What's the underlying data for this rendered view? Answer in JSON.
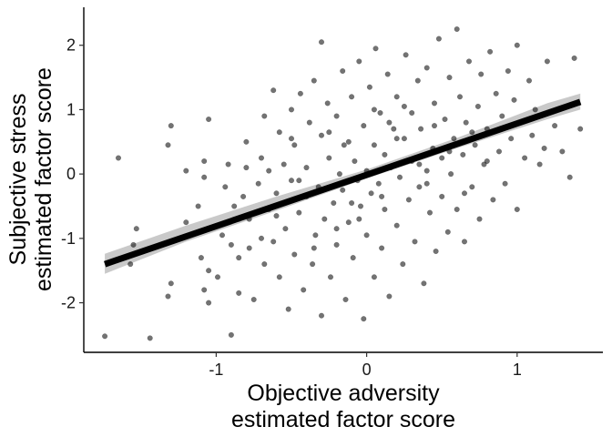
{
  "chart_data": {
    "type": "scatter",
    "title": "",
    "xlabel": [
      "Objective adversity",
      "estimated factor score"
    ],
    "ylabel": [
      "Subjective stress",
      "estimated factor score"
    ],
    "xlim": [
      -1.88,
      1.57
    ],
    "ylim": [
      -2.77,
      2.59
    ],
    "x_ticks": [
      -1,
      0,
      1
    ],
    "x_tick_labels": [
      "-1",
      "0",
      "1"
    ],
    "y_ticks": [
      -2,
      -1,
      0,
      1,
      2
    ],
    "y_tick_labels": [
      "-2",
      "-1",
      "0",
      "1",
      "2"
    ],
    "grid": false,
    "legend": "none",
    "point_color": "#000000",
    "point_opacity": 0.55,
    "fit_line": {
      "x": [
        -1.74,
        1.42
      ],
      "y": [
        -1.4,
        1.12
      ],
      "color": "#000000"
    },
    "confidence_band": {
      "x": [
        -1.74,
        -1.2,
        -0.6,
        0.0,
        0.6,
        1.2,
        1.42
      ],
      "lower": [
        -1.55,
        -1.05,
        -0.57,
        -0.07,
        0.4,
        0.85,
        1.0
      ],
      "upper": [
        -1.24,
        -0.8,
        -0.35,
        0.07,
        0.56,
        1.1,
        1.25
      ],
      "color": "#c0c0c0"
    },
    "points": [
      [
        -1.74,
        -2.52
      ],
      [
        -1.44,
        -2.55
      ],
      [
        -1.65,
        0.25
      ],
      [
        -1.53,
        -0.85
      ],
      [
        -1.55,
        -1.1
      ],
      [
        -1.57,
        -1.4
      ],
      [
        -1.32,
        0.45
      ],
      [
        -1.3,
        0.75
      ],
      [
        -1.32,
        -1.9
      ],
      [
        -1.3,
        -1.7
      ],
      [
        -1.2,
        0.05
      ],
      [
        -1.2,
        -0.75
      ],
      [
        -1.12,
        -0.5
      ],
      [
        -1.05,
        0.85
      ],
      [
        -1.05,
        -2.0
      ],
      [
        -1.1,
        -1.3
      ],
      [
        -1.08,
        -0.05
      ],
      [
        -1.08,
        0.2
      ],
      [
        -1.08,
        -1.8
      ],
      [
        -1.05,
        -1.5
      ],
      [
        -0.99,
        -1.6
      ],
      [
        -0.96,
        -0.95
      ],
      [
        -0.94,
        -0.2
      ],
      [
        -0.92,
        0.15
      ],
      [
        -0.9,
        -1.1
      ],
      [
        -0.9,
        -2.5
      ],
      [
        -0.88,
        -0.5
      ],
      [
        -0.85,
        -1.85
      ],
      [
        -0.85,
        -1.3
      ],
      [
        -0.82,
        -0.35
      ],
      [
        -0.8,
        0.5
      ],
      [
        -0.8,
        0.1
      ],
      [
        -0.78,
        -1.15
      ],
      [
        -0.78,
        -0.7
      ],
      [
        -0.75,
        -1.95
      ],
      [
        -0.72,
        -0.15
      ],
      [
        -0.7,
        0.25
      ],
      [
        -0.68,
        0.9
      ],
      [
        -0.68,
        -1.4
      ],
      [
        -0.65,
        -0.55
      ],
      [
        -0.62,
        1.3
      ],
      [
        -0.62,
        -1.05
      ],
      [
        -0.6,
        -0.3
      ],
      [
        -0.58,
        -1.6
      ],
      [
        -0.58,
        0.65
      ],
      [
        -0.55,
        0.15
      ],
      [
        -0.54,
        -0.85
      ],
      [
        -0.52,
        -2.1
      ],
      [
        -0.5,
        1.0
      ],
      [
        -0.5,
        -0.1
      ],
      [
        -0.48,
        -1.25
      ],
      [
        -0.48,
        0.45
      ],
      [
        -0.45,
        -0.6
      ],
      [
        -0.44,
        1.25
      ],
      [
        -0.42,
        -1.8
      ],
      [
        -0.4,
        0.1
      ],
      [
        -0.4,
        -0.35
      ],
      [
        -0.38,
        0.8
      ],
      [
        -0.36,
        -1.4
      ],
      [
        -0.35,
        1.45
      ],
      [
        -0.34,
        -0.95
      ],
      [
        -0.32,
        -0.2
      ],
      [
        -0.3,
        0.6
      ],
      [
        -0.3,
        -2.2
      ],
      [
        -0.28,
        -0.7
      ],
      [
        -0.26,
        1.1
      ],
      [
        -0.25,
        0.25
      ],
      [
        -0.24,
        -1.6
      ],
      [
        -0.22,
        -0.45
      ],
      [
        -0.2,
        0.9
      ],
      [
        -0.2,
        -1.1
      ],
      [
        -0.18,
        0.0
      ],
      [
        -0.16,
        1.6
      ],
      [
        -0.16,
        -0.25
      ],
      [
        -0.14,
        -1.95
      ],
      [
        -0.12,
        0.5
      ],
      [
        -0.12,
        -0.75
      ],
      [
        -0.1,
        1.2
      ],
      [
        -0.09,
        -1.3
      ],
      [
        -0.08,
        0.2
      ],
      [
        -0.06,
        -0.1
      ],
      [
        -0.05,
        1.75
      ],
      [
        -0.04,
        -0.5
      ],
      [
        -0.02,
        0.75
      ],
      [
        -0.02,
        -2.25
      ],
      [
        0.0,
        0.05
      ],
      [
        0.0,
        -0.95
      ],
      [
        0.02,
        1.35
      ],
      [
        0.03,
        -0.3
      ],
      [
        0.05,
        0.45
      ],
      [
        0.05,
        -1.6
      ],
      [
        0.06,
        1.95
      ],
      [
        0.08,
        -0.15
      ],
      [
        0.09,
        0.95
      ],
      [
        0.1,
        -1.15
      ],
      [
        0.12,
        0.3
      ],
      [
        0.12,
        -0.55
      ],
      [
        0.14,
        1.55
      ],
      [
        0.15,
        -1.9
      ],
      [
        0.16,
        0.1
      ],
      [
        0.18,
        0.7
      ],
      [
        0.2,
        -0.8
      ],
      [
        0.2,
        1.2
      ],
      [
        0.22,
        -0.05
      ],
      [
        0.24,
        -1.4
      ],
      [
        0.25,
        0.55
      ],
      [
        0.26,
        1.85
      ],
      [
        0.28,
        -0.4
      ],
      [
        0.3,
        0.95
      ],
      [
        0.3,
        0.2
      ],
      [
        0.32,
        -1.05
      ],
      [
        0.34,
        1.45
      ],
      [
        0.35,
        -0.2
      ],
      [
        0.36,
        0.7
      ],
      [
        0.38,
        -1.7
      ],
      [
        0.4,
        0.05
      ],
      [
        0.4,
        1.65
      ],
      [
        0.42,
        -0.6
      ],
      [
        0.44,
        0.4
      ],
      [
        0.45,
        1.1
      ],
      [
        0.46,
        -1.2
      ],
      [
        0.48,
        2.1
      ],
      [
        0.5,
        0.25
      ],
      [
        0.5,
        -0.35
      ],
      [
        0.52,
        0.85
      ],
      [
        0.54,
        -0.9
      ],
      [
        0.55,
        1.5
      ],
      [
        0.56,
        0.0
      ],
      [
        0.58,
        0.55
      ],
      [
        0.6,
        2.25
      ],
      [
        0.6,
        -0.55
      ],
      [
        0.62,
        1.2
      ],
      [
        0.64,
        0.3
      ],
      [
        0.65,
        -1.05
      ],
      [
        0.66,
        0.8
      ],
      [
        0.68,
        1.75
      ],
      [
        0.7,
        -0.2
      ],
      [
        0.72,
        0.45
      ],
      [
        0.74,
        1.05
      ],
      [
        0.75,
        -0.7
      ],
      [
        0.76,
        1.55
      ],
      [
        0.78,
        0.15
      ],
      [
        0.8,
        0.7
      ],
      [
        0.82,
        1.9
      ],
      [
        0.84,
        -0.4
      ],
      [
        0.86,
        1.25
      ],
      [
        0.88,
        0.35
      ],
      [
        0.9,
        0.9
      ],
      [
        0.92,
        -0.15
      ],
      [
        0.94,
        1.6
      ],
      [
        0.96,
        0.55
      ],
      [
        0.98,
        1.15
      ],
      [
        1.0,
        -0.55
      ],
      [
        1.0,
        2.0
      ],
      [
        1.02,
        0.8
      ],
      [
        1.05,
        0.25
      ],
      [
        1.08,
        1.45
      ],
      [
        1.1,
        0.6
      ],
      [
        1.12,
        1.0
      ],
      [
        1.15,
        0.15
      ],
      [
        1.18,
        0.4
      ],
      [
        1.2,
        1.75
      ],
      [
        1.25,
        0.75
      ],
      [
        1.3,
        0.35
      ],
      [
        1.35,
        -0.05
      ],
      [
        1.38,
        1.8
      ],
      [
        1.42,
        0.7
      ],
      [
        -0.3,
        2.05
      ],
      [
        -0.6,
        -0.65
      ],
      [
        -0.2,
        -0.85
      ],
      [
        0.15,
        0.8
      ],
      [
        0.4,
        -0.15
      ],
      [
        0.7,
        0.65
      ],
      [
        -0.5,
        0.55
      ],
      [
        -0.7,
        -1.0
      ],
      [
        0.25,
        1.05
      ],
      [
        -0.15,
        0.45
      ],
      [
        0.55,
        0.35
      ],
      [
        -0.35,
        -1.15
      ],
      [
        0.05,
        1.0
      ],
      [
        -0.45,
        -0.1
      ],
      [
        0.35,
        0.15
      ],
      [
        0.8,
        0.2
      ],
      [
        -0.85,
        -0.7
      ],
      [
        0.1,
        -0.35
      ],
      [
        -0.25,
        0.65
      ],
      [
        0.65,
        -0.3
      ],
      [
        -0.05,
        -0.7
      ],
      [
        0.45,
        0.75
      ],
      [
        -0.65,
        0.05
      ],
      [
        0.2,
        0.55
      ],
      [
        -0.1,
        -0.45
      ]
    ]
  }
}
